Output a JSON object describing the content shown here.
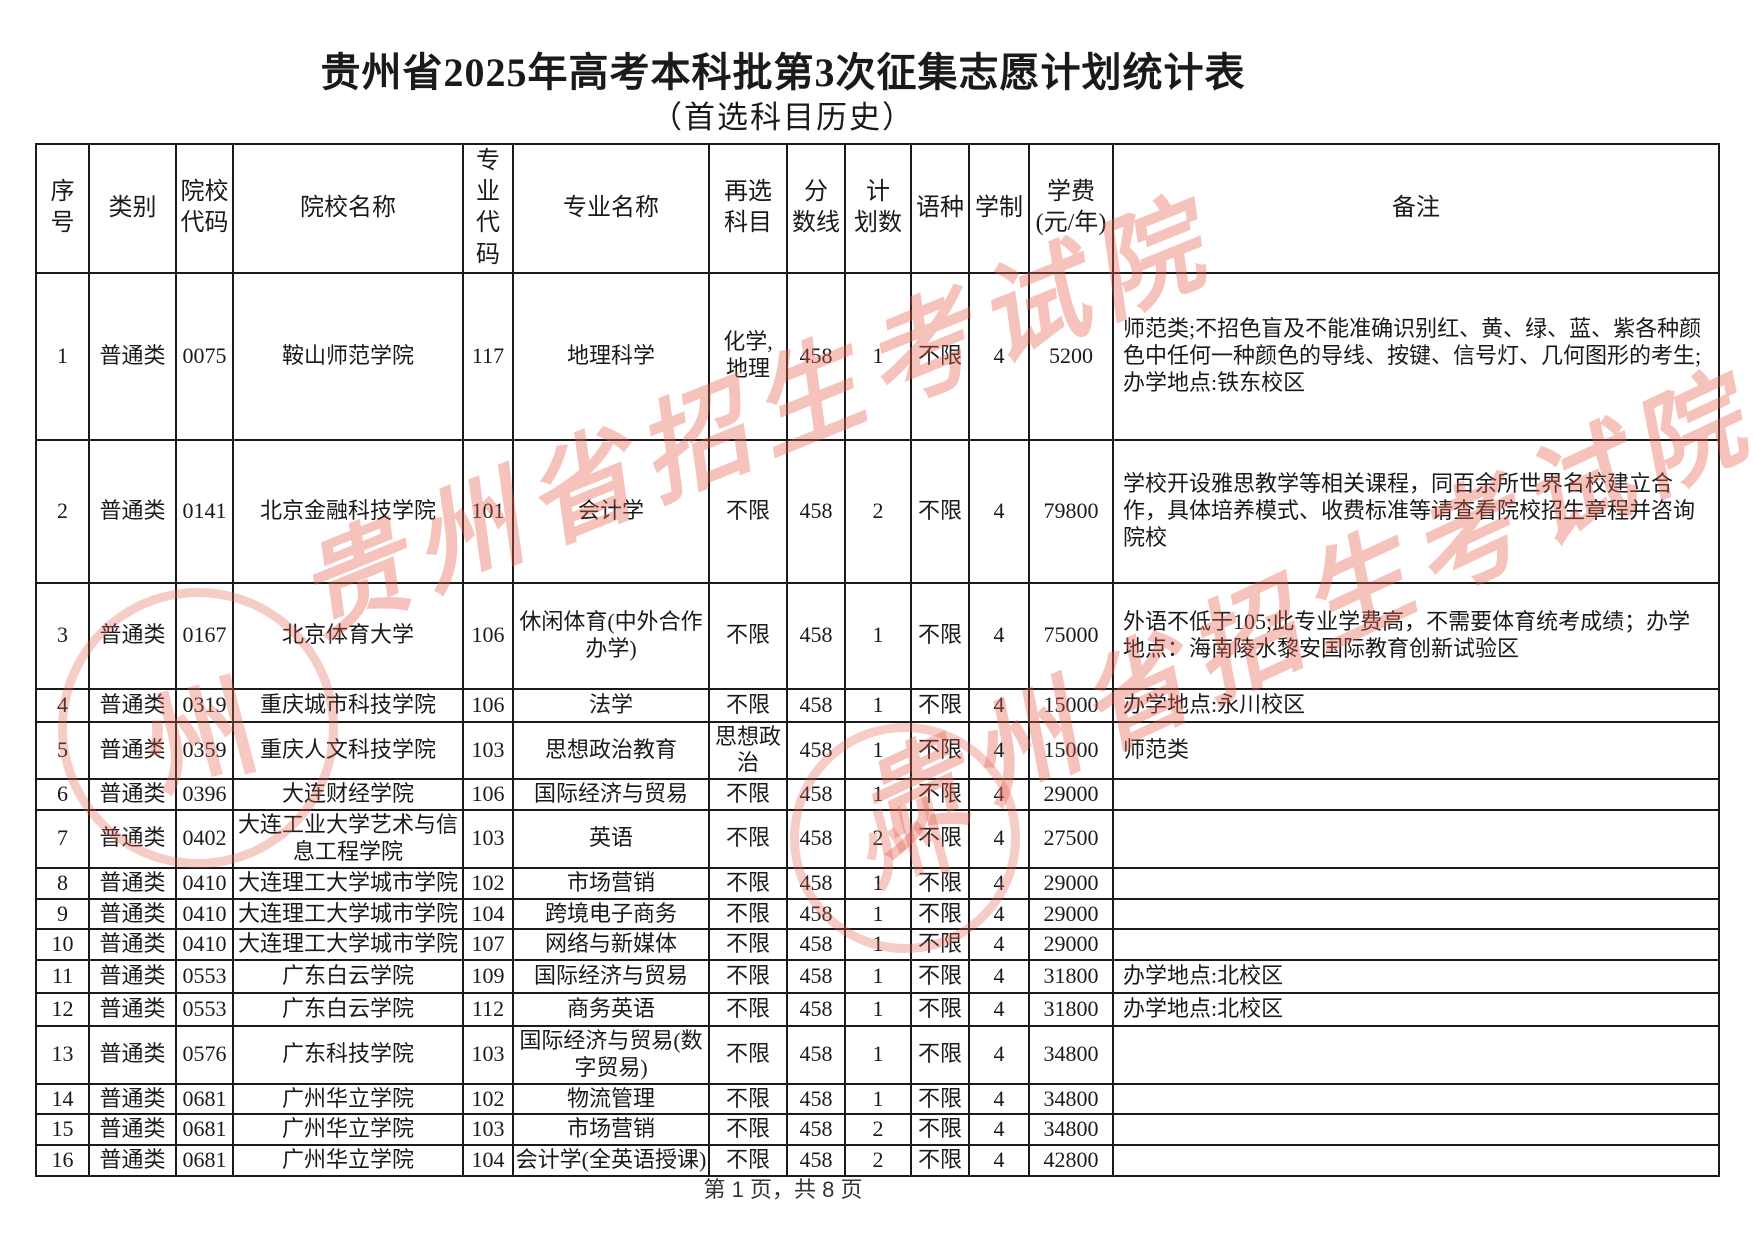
{
  "page": {
    "title": "贵州省2025年高考本科批第3次征集志愿计划统计表",
    "subtitle": "（首选科目历史）",
    "footer": "第 1 页，共 8 页"
  },
  "watermark": {
    "text": "贵州省招生考试院",
    "seal_char": "州",
    "color": "#e46050"
  },
  "table": {
    "headers": [
      "序号",
      "类别",
      "院校\n代码",
      "院校名称",
      "专业\n代码",
      "专业名称",
      "再选\n科目",
      "分\n数线",
      "计\n划数",
      "语种",
      "学制",
      "学费\n(元/年)",
      "备注"
    ],
    "rows": [
      [
        "1",
        "普通类",
        "0075",
        "鞍山师范学院",
        "117",
        "地理科学",
        "化学,地理",
        "458",
        "1",
        "不限",
        "4",
        "5200",
        "师范类;不招色盲及不能准确识别红、黄、绿、蓝、紫各种颜色中任何一种颜色的导线、按键、信号灯、几何图形的考生;办学地点:铁东校区"
      ],
      [
        "2",
        "普通类",
        "0141",
        "北京金融科技学院",
        "101",
        "会计学",
        "不限",
        "458",
        "2",
        "不限",
        "4",
        "79800",
        "学校开设雅思教学等相关课程，同百余所世界名校建立合作，具体培养模式、收费标准等请查看院校招生章程并咨询院校"
      ],
      [
        "3",
        "普通类",
        "0167",
        "北京体育大学",
        "106",
        "休闲体育(中外合作办学)",
        "不限",
        "458",
        "1",
        "不限",
        "4",
        "75000",
        "外语不低于105;此专业学费高，不需要体育统考成绩；办学地点：海南陵水黎安国际教育创新试验区"
      ],
      [
        "4",
        "普通类",
        "0319",
        "重庆城市科技学院",
        "106",
        "法学",
        "不限",
        "458",
        "1",
        "不限",
        "4",
        "15000",
        "办学地点:永川校区"
      ],
      [
        "5",
        "普通类",
        "0359",
        "重庆人文科技学院",
        "103",
        "思想政治教育",
        "思想政治",
        "458",
        "1",
        "不限",
        "4",
        "15000",
        "师范类"
      ],
      [
        "6",
        "普通类",
        "0396",
        "大连财经学院",
        "106",
        "国际经济与贸易",
        "不限",
        "458",
        "1",
        "不限",
        "4",
        "29000",
        ""
      ],
      [
        "7",
        "普通类",
        "0402",
        "大连工业大学艺术与信息工程学院",
        "103",
        "英语",
        "不限",
        "458",
        "2",
        "不限",
        "4",
        "27500",
        ""
      ],
      [
        "8",
        "普通类",
        "0410",
        "大连理工大学城市学院",
        "102",
        "市场营销",
        "不限",
        "458",
        "1",
        "不限",
        "4",
        "29000",
        ""
      ],
      [
        "9",
        "普通类",
        "0410",
        "大连理工大学城市学院",
        "104",
        "跨境电子商务",
        "不限",
        "458",
        "1",
        "不限",
        "4",
        "29000",
        ""
      ],
      [
        "10",
        "普通类",
        "0410",
        "大连理工大学城市学院",
        "107",
        "网络与新媒体",
        "不限",
        "458",
        "1",
        "不限",
        "4",
        "29000",
        ""
      ],
      [
        "11",
        "普通类",
        "0553",
        "广东白云学院",
        "109",
        "国际经济与贸易",
        "不限",
        "458",
        "1",
        "不限",
        "4",
        "31800",
        "办学地点:北校区"
      ],
      [
        "12",
        "普通类",
        "0553",
        "广东白云学院",
        "112",
        "商务英语",
        "不限",
        "458",
        "1",
        "不限",
        "4",
        "31800",
        "办学地点:北校区"
      ],
      [
        "13",
        "普通类",
        "0576",
        "广东科技学院",
        "103",
        "国际经济与贸易(数字贸易)",
        "不限",
        "458",
        "1",
        "不限",
        "4",
        "34800",
        ""
      ],
      [
        "14",
        "普通类",
        "0681",
        "广州华立学院",
        "102",
        "物流管理",
        "不限",
        "458",
        "1",
        "不限",
        "4",
        "34800",
        ""
      ],
      [
        "15",
        "普通类",
        "0681",
        "广州华立学院",
        "103",
        "市场营销",
        "不限",
        "458",
        "2",
        "不限",
        "4",
        "34800",
        ""
      ],
      [
        "16",
        "普通类",
        "0681",
        "广州华立学院",
        "104",
        "会计学(全英语授课)",
        "不限",
        "458",
        "2",
        "不限",
        "4",
        "42800",
        ""
      ]
    ]
  }
}
